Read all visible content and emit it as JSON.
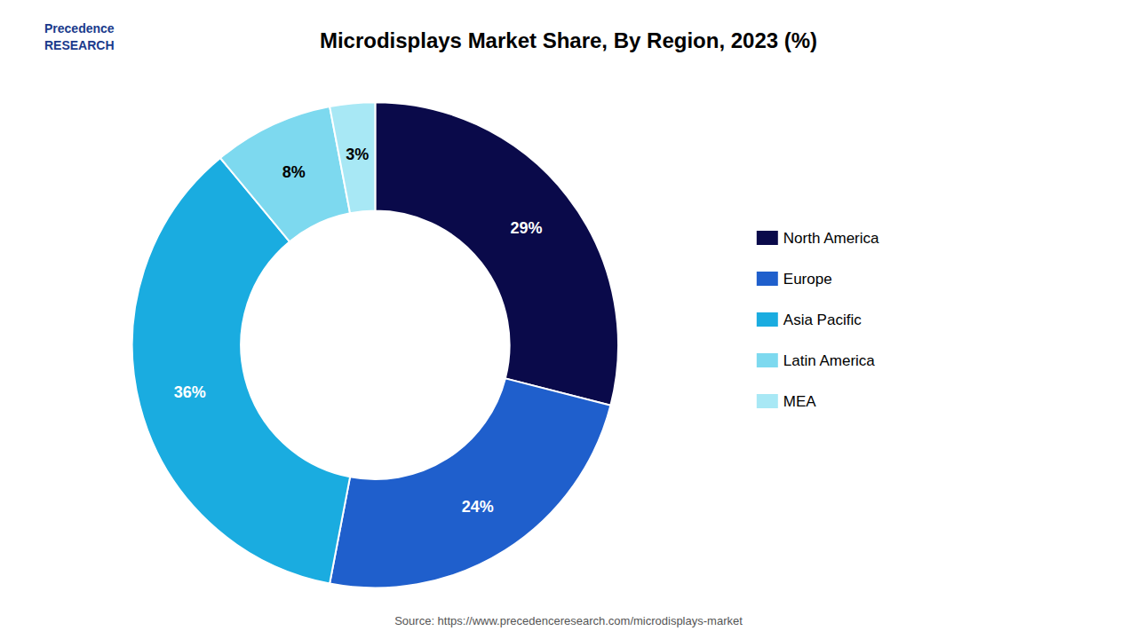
{
  "chart_data": {
    "type": "pie",
    "title": "Microdisplays Market Share, By Region, 2023 (%)",
    "categories": [
      "North America",
      "Europe",
      "Asia Pacific",
      "Latin America",
      "MEA"
    ],
    "values": [
      29,
      24,
      36,
      8,
      3
    ],
    "value_labels": [
      "29%",
      "24%",
      "36%",
      "8%",
      "3%"
    ],
    "colors": [
      "#0a0a4a",
      "#1f5fcc",
      "#1aace0",
      "#7dd9ef",
      "#a8e8f5"
    ],
    "data_labels": true,
    "legend": "right",
    "annotations": [
      "Precedence\nRESEARCH",
      "Source: https://www.precedenceresearch.com/microdisplays-market"
    ]
  }
}
